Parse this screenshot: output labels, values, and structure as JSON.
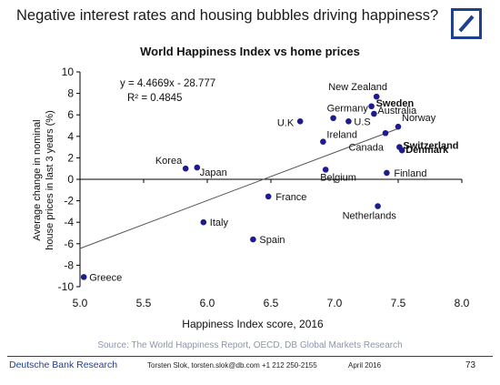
{
  "headline": "Negative interest rates and housing bubbles driving happiness?",
  "logo": {
    "name": "deutsche-bank-logo",
    "color": "#1f3f8f"
  },
  "footer": {
    "source": "Source: The World Happiness Report, OECD, DB Global Markets Research",
    "brand": "Deutsche Bank Research",
    "contact": "Torsten Slok, torsten.slok@db.com  +1 212 250-2155",
    "date": "April 2016",
    "page": "73"
  },
  "chart_data": {
    "type": "scatter",
    "title": "World Happiness Index vs home prices",
    "xlabel": "Happiness Index score, 2016",
    "ylabel": "Average change in nominal house prices in last 3 years (%)",
    "ylabel_lines": [
      "Average change in nominal",
      "house prices in last 3 years (%)"
    ],
    "xlim": [
      5.0,
      8.0
    ],
    "ylim": [
      -10,
      10
    ],
    "xticks": [
      "5.0",
      "5.5",
      "6.0",
      "6.5",
      "7.0",
      "7.5",
      "8.0"
    ],
    "yticks": [
      "10",
      "8",
      "6",
      "4",
      "2",
      "0",
      "-2",
      "-4",
      "-6",
      "-8",
      "-10"
    ],
    "grid": false,
    "marker_color": "#1c1c8c",
    "points": [
      {
        "label": "Greece",
        "x": 5.03,
        "y": -9.1,
        "bold": false
      },
      {
        "label": "Korea",
        "x": 5.83,
        "y": 1.0,
        "bold": false
      },
      {
        "label": "Japan",
        "x": 5.92,
        "y": 1.1,
        "bold": false
      },
      {
        "label": "Italy",
        "x": 5.97,
        "y": -4.0,
        "bold": false
      },
      {
        "label": "Spain",
        "x": 6.36,
        "y": -5.6,
        "bold": false
      },
      {
        "label": "France",
        "x": 6.48,
        "y": -1.6,
        "bold": false
      },
      {
        "label": "U.K",
        "x": 6.73,
        "y": 5.4,
        "bold": false
      },
      {
        "label": "Belgium",
        "x": 6.93,
        "y": 0.9,
        "bold": false
      },
      {
        "label": "Ireland",
        "x": 6.91,
        "y": 3.5,
        "bold": false
      },
      {
        "label": "Germany",
        "x": 6.99,
        "y": 5.7,
        "bold": false
      },
      {
        "label": "U.S",
        "x": 7.11,
        "y": 5.4,
        "bold": false
      },
      {
        "label": "Netherlands",
        "x": 7.34,
        "y": -2.5,
        "bold": false
      },
      {
        "label": "New Zealand",
        "x": 7.33,
        "y": 7.7,
        "bold": false
      },
      {
        "label": "Sweden",
        "x": 7.29,
        "y": 6.8,
        "bold": true
      },
      {
        "label": "Australia",
        "x": 7.31,
        "y": 6.1,
        "bold": false
      },
      {
        "label": "Canada",
        "x": 7.4,
        "y": 4.3,
        "bold": false
      },
      {
        "label": "Finland",
        "x": 7.41,
        "y": 0.6,
        "bold": false
      },
      {
        "label": "Norway",
        "x": 7.5,
        "y": 4.9,
        "bold": false
      },
      {
        "label": "Switzerland",
        "x": 7.51,
        "y": 3.0,
        "bold": true
      },
      {
        "label": "Denmark",
        "x": 7.53,
        "y": 2.7,
        "bold": true
      }
    ],
    "trendline": {
      "slope": 4.4669,
      "intercept": -28.777,
      "equation": "y = 4.4669x - 28.777",
      "r2": "R² = 0.4845"
    }
  }
}
